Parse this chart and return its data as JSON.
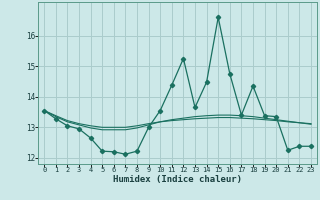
{
  "xlabel": "Humidex (Indice chaleur)",
  "xlim": [
    -0.5,
    23.5
  ],
  "ylim": [
    11.8,
    17.1
  ],
  "yticks": [
    12,
    13,
    14,
    15,
    16
  ],
  "xticks": [
    0,
    1,
    2,
    3,
    4,
    5,
    6,
    7,
    8,
    9,
    10,
    11,
    12,
    13,
    14,
    15,
    16,
    17,
    18,
    19,
    20,
    21,
    22,
    23
  ],
  "bg_color": "#cce8e8",
  "grid_color": "#aacccc",
  "line_color": "#1a7060",
  "line1_x": [
    0,
    1,
    2,
    3,
    4,
    5,
    6,
    7,
    8,
    9,
    10,
    11,
    12,
    13,
    14,
    15,
    16,
    17,
    18,
    19,
    20,
    21,
    22,
    23
  ],
  "line1_y": [
    13.55,
    13.28,
    13.05,
    12.95,
    12.65,
    12.22,
    12.2,
    12.12,
    12.22,
    13.0,
    13.55,
    14.38,
    15.25,
    13.65,
    14.48,
    16.6,
    14.75,
    13.4,
    14.35,
    13.38,
    13.35,
    12.25,
    12.38,
    12.38
  ],
  "line2_x": [
    0,
    1,
    2,
    3,
    4,
    5,
    6,
    7,
    8,
    9,
    10,
    11,
    12,
    13,
    14,
    15,
    16,
    17,
    18,
    19,
    20,
    21,
    22,
    23
  ],
  "line2_y": [
    13.55,
    13.35,
    13.18,
    13.08,
    12.98,
    12.92,
    12.92,
    12.92,
    12.98,
    13.08,
    13.18,
    13.25,
    13.3,
    13.35,
    13.38,
    13.4,
    13.4,
    13.38,
    13.35,
    13.3,
    13.25,
    13.2,
    13.15,
    13.1
  ],
  "line3_x": [
    0,
    1,
    2,
    3,
    4,
    5,
    6,
    7,
    8,
    9,
    10,
    11,
    12,
    13,
    14,
    15,
    16,
    17,
    18,
    19,
    20,
    21,
    22,
    23
  ],
  "line3_y": [
    13.55,
    13.38,
    13.22,
    13.12,
    13.05,
    13.0,
    13.0,
    13.0,
    13.05,
    13.12,
    13.18,
    13.22,
    13.25,
    13.28,
    13.3,
    13.32,
    13.32,
    13.3,
    13.28,
    13.25,
    13.22,
    13.18,
    13.15,
    13.12
  ]
}
